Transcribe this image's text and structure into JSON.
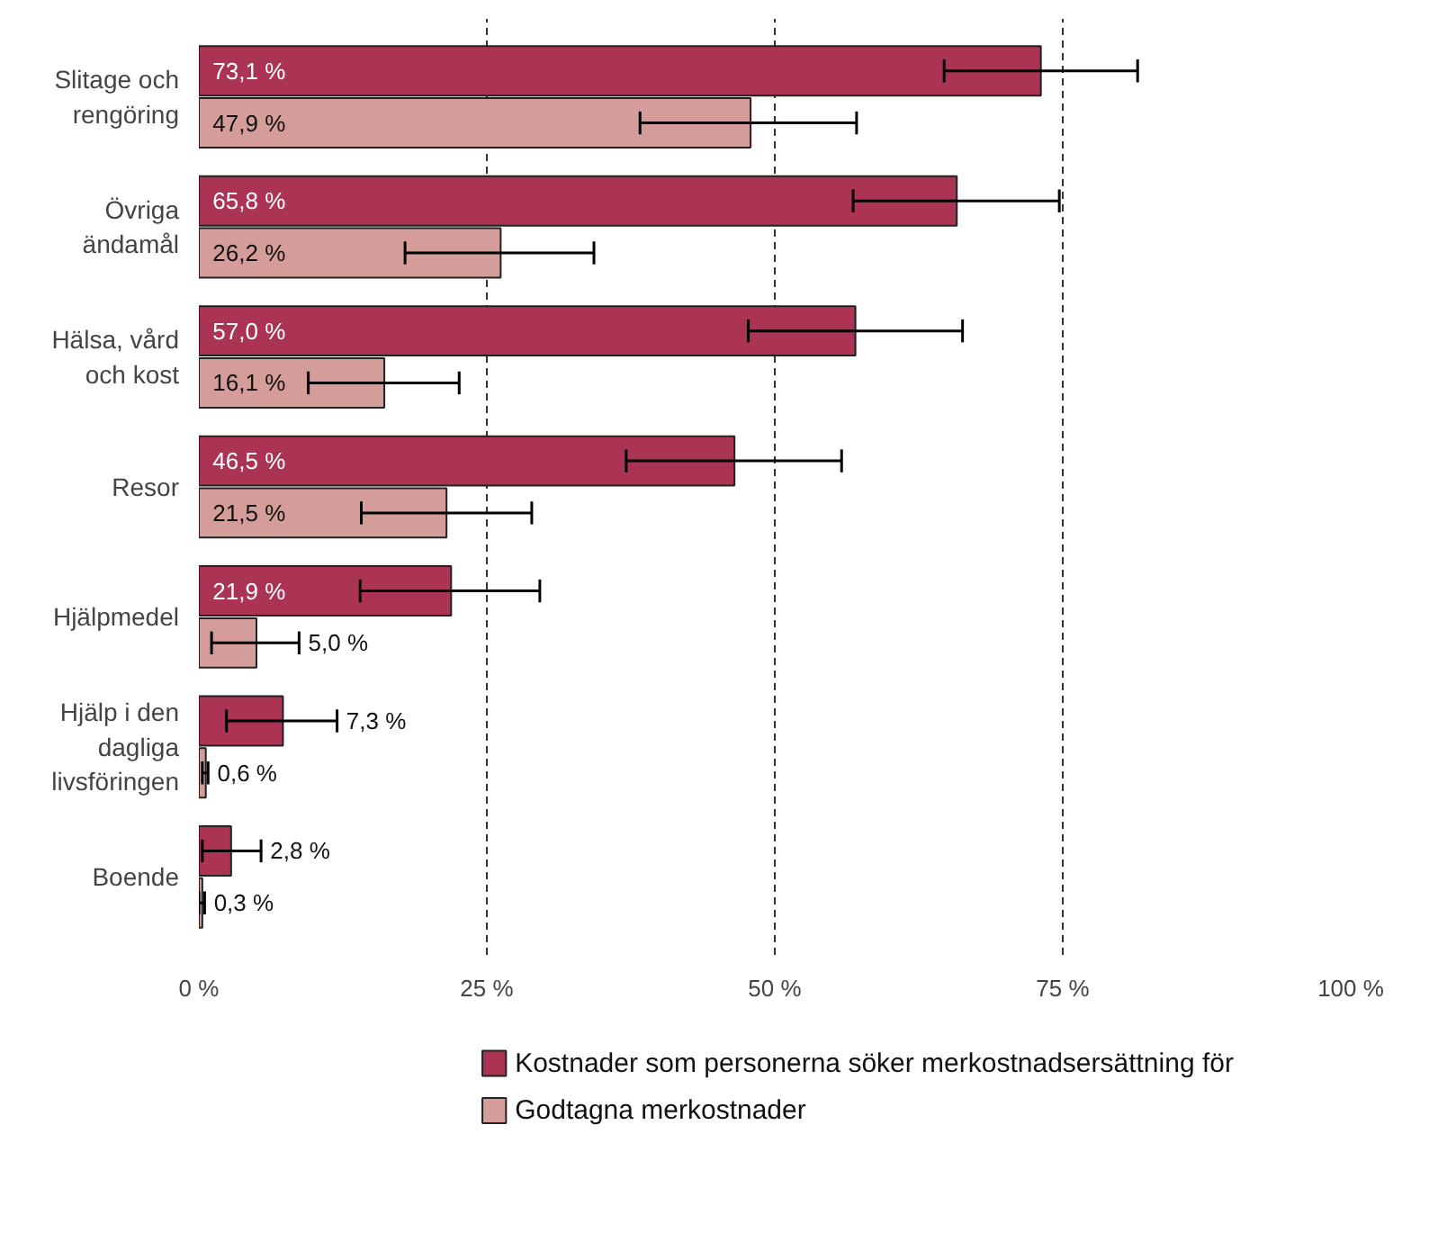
{
  "chart_data": {
    "type": "bar",
    "orientation": "horizontal",
    "categories": [
      "Slitage och\nrengöring",
      "Övriga\nändamål",
      "Hälsa, vård\noch kost",
      "Resor",
      "Hjälpmedel",
      "Hjälp i den\ndagliga\nlivsföringen",
      "Boende"
    ],
    "series": [
      {
        "name": "Kostnader som personerna söker merkostnadsersättning för",
        "color": "#ab3454",
        "values": [
          73.1,
          65.8,
          57.0,
          46.5,
          21.9,
          7.3,
          2.8
        ],
        "errors": [
          [
            64.7,
            81.5
          ],
          [
            56.8,
            74.7
          ],
          [
            47.7,
            66.3
          ],
          [
            37.1,
            55.8
          ],
          [
            14.0,
            29.6
          ],
          [
            2.4,
            12.0
          ],
          [
            0.3,
            5.4
          ]
        ],
        "value_labels": [
          "73,1 %",
          "65,8 %",
          "57,0 %",
          "46,5 %",
          "21,9 %",
          "7,3 %",
          "2,8 %"
        ]
      },
      {
        "name": "Godtagna merkostnader",
        "color": "#d49d99",
        "values": [
          47.9,
          26.2,
          16.1,
          21.5,
          5.0,
          0.6,
          0.3
        ],
        "errors": [
          [
            38.3,
            57.1
          ],
          [
            17.9,
            34.3
          ],
          [
            9.5,
            22.6
          ],
          [
            14.1,
            28.9
          ],
          [
            1.1,
            8.7
          ],
          [
            0.3,
            0.8
          ],
          [
            0.0,
            0.5
          ]
        ],
        "value_labels": [
          "47,9 %",
          "26,2 %",
          "16,1 %",
          "21,5 %",
          "5,0 %",
          "0,6 %",
          "0,3 %"
        ]
      }
    ],
    "xlim": [
      0,
      100
    ],
    "xticks": [
      {
        "value": 0,
        "label": "0 %"
      },
      {
        "value": 25,
        "label": "25 %"
      },
      {
        "value": 50,
        "label": "50 %"
      },
      {
        "value": 75,
        "label": "75 %"
      },
      {
        "value": 100,
        "label": "100 %"
      }
    ],
    "grid": "x",
    "legend": "bottom"
  }
}
